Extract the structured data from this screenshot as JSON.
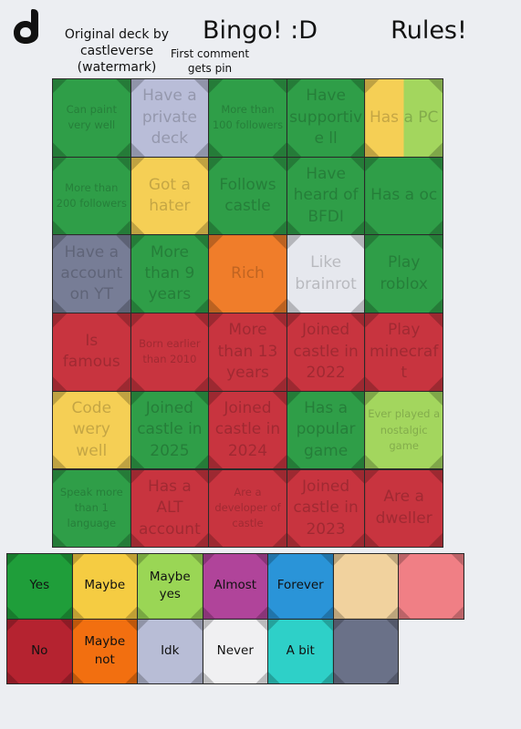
{
  "header": {
    "credit": "Original deck by castleverse (watermark)",
    "note": "First comment gets pin",
    "title": "Bingo! :D",
    "rules": "Rules!"
  },
  "grid": {
    "rows": [
      [
        {
          "text": "Can paint very well",
          "color": "#2f9e48"
        },
        {
          "text": "Have a private deck",
          "color": "#b9bdd8"
        },
        {
          "text": "More than 100 followers",
          "color": "#2f9e48"
        },
        {
          "text": "Have supportive ll",
          "color": "#2f9e48"
        },
        {
          "text": "Has a PC",
          "colors": [
            "#f5cf55",
            "#a3d65e"
          ]
        }
      ],
      [
        {
          "text": "More than 200 followers",
          "color": "#2f9e48"
        },
        {
          "text": "Got a hater",
          "color": "#f5cf55"
        },
        {
          "text": "Follows castle",
          "color": "#2f9e48"
        },
        {
          "text": "Have heard of BFDI",
          "color": "#2f9e48"
        },
        {
          "text": "Has a oc",
          "color": "#2f9e48"
        }
      ],
      [
        {
          "text": "Have a account on YT",
          "color": "#777d96"
        },
        {
          "text": "More than 9 years",
          "color": "#2f9e48"
        },
        {
          "text": "Rich",
          "color": "#f07d2a"
        },
        {
          "text": "Like brainrot",
          "color": "#e6e8ee"
        },
        {
          "text": "Play roblox",
          "color": "#2f9e48"
        }
      ],
      [
        {
          "text": "Is famous",
          "color": "#c8343f"
        },
        {
          "text": "Born earlier than 2010",
          "color": "#c8343f"
        },
        {
          "text": "More than 13 years",
          "color": "#c8343f"
        },
        {
          "text": "Joined castle in 2022",
          "color": "#c8343f"
        },
        {
          "text": "Play minecraft",
          "color": "#c8343f"
        }
      ],
      [
        {
          "text": "Code wery well",
          "color": "#f5cf55"
        },
        {
          "text": "Joined castle in 2025",
          "color": "#2f9e48"
        },
        {
          "text": "Joined castle in 2024",
          "color": "#c8343f"
        },
        {
          "text": "Has a popular game",
          "color": "#2f9e48"
        },
        {
          "text": "Ever played a nostalgic game",
          "color": "#a3d65e"
        }
      ],
      [
        {
          "text": "Speak more than 1 language",
          "color": "#2f9e48"
        },
        {
          "text": "Has a ALT account",
          "color": "#c8343f"
        },
        {
          "text": "Are a developer of castle",
          "color": "#c8343f"
        },
        {
          "text": "Joined castle in 2023",
          "color": "#c8343f"
        },
        {
          "text": "Are a dweller",
          "color": "#c8343f"
        }
      ]
    ]
  },
  "legend": {
    "rows": [
      [
        {
          "label": "Yes",
          "color": "#1f9e3a"
        },
        {
          "label": "Maybe",
          "color": "#f5cc42"
        },
        {
          "label": "Maybe yes",
          "color": "#9ad655"
        },
        {
          "label": "Almost",
          "color": "#b0449a"
        },
        {
          "label": "Forever",
          "color": "#2a94d8"
        },
        {
          "color": "#f1d29e"
        },
        {
          "color": "#f07f85"
        }
      ],
      [
        {
          "label": "No",
          "color": "#b52330"
        },
        {
          "label": "Maybe not",
          "color": "#f26f10"
        },
        {
          "label": "Idk",
          "color": "#b8bdd6"
        },
        {
          "label": "Never",
          "color": "#f0f0f2"
        },
        {
          "label": "A bit",
          "color": "#2ed0c8"
        },
        {
          "color": "#6a7188"
        }
      ]
    ]
  }
}
